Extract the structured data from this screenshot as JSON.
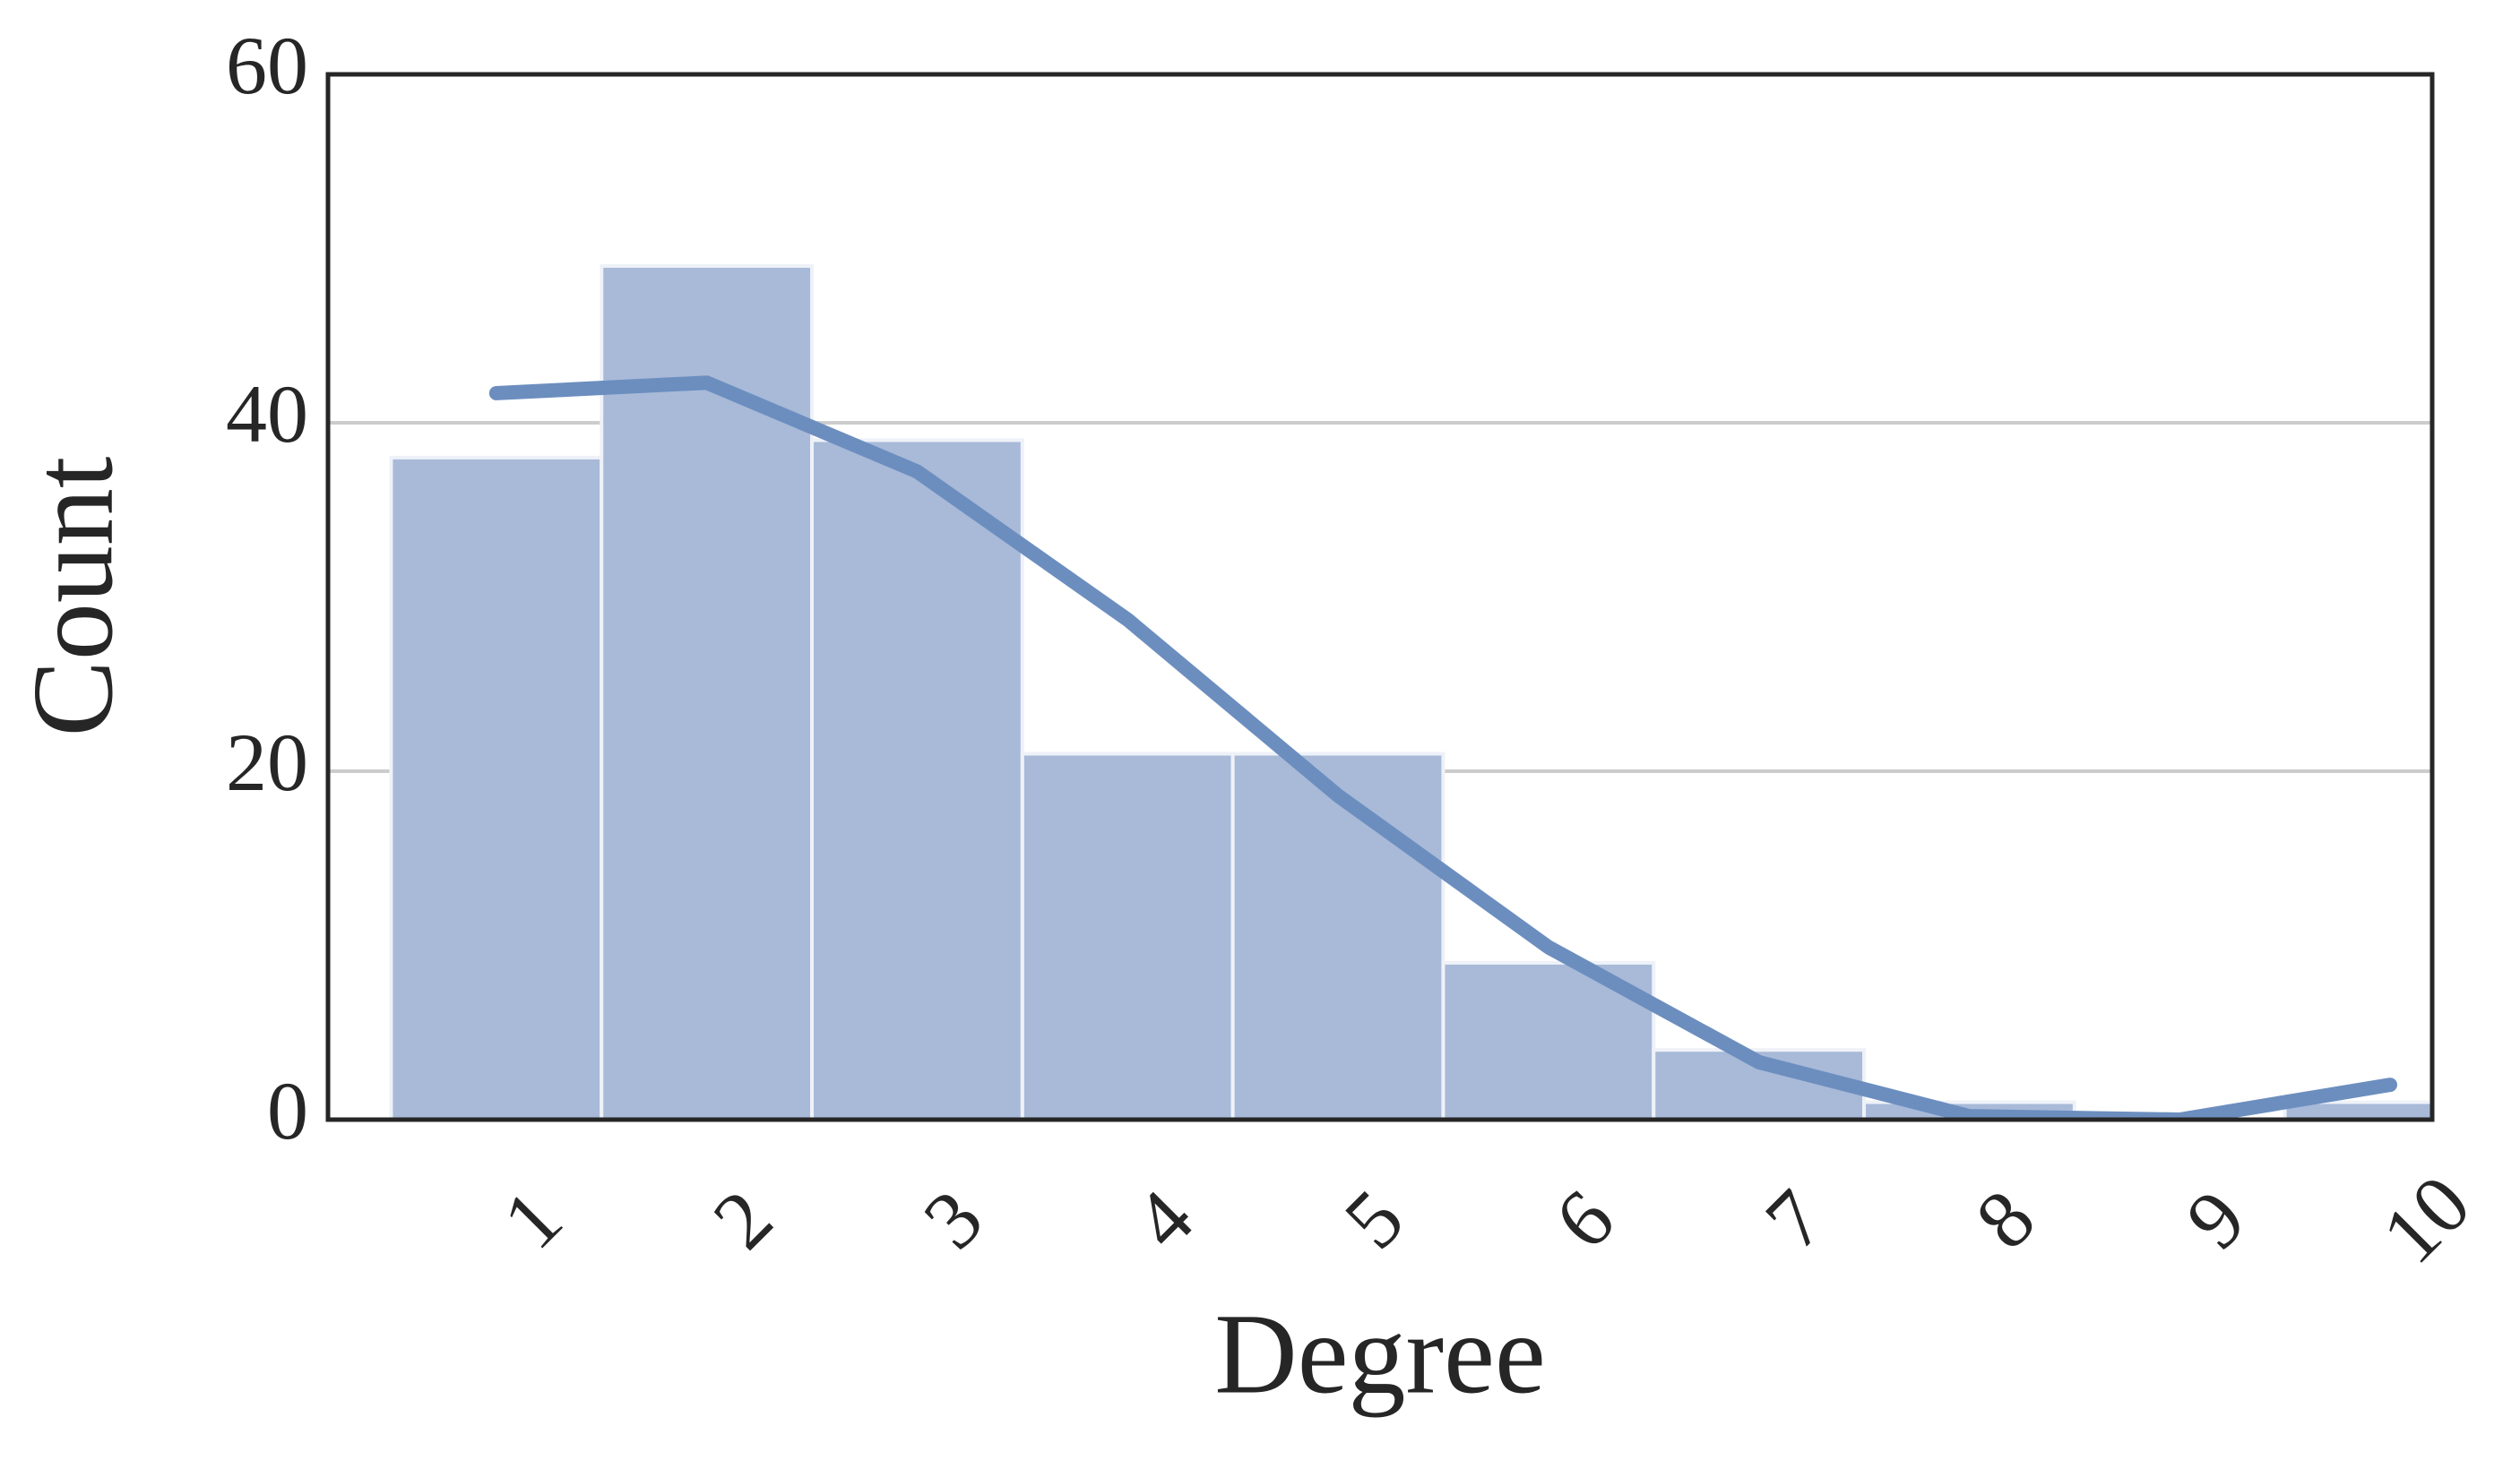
{
  "chart_data": {
    "type": "histogram",
    "x_label": "Degree",
    "y_label": "Count",
    "bins": [
      0.3,
      1.3,
      2.3,
      3.3,
      4.3,
      5.3,
      6.3,
      7.3,
      8.3,
      9.3,
      10.3
    ],
    "counts": [
      38,
      49,
      39,
      21,
      21,
      9,
      4,
      1,
      0,
      1
    ],
    "color": "#a8bad8",
    "kde": {
      "type": "line",
      "color": "#6c8ebf",
      "x": [
        0.8,
        1.8,
        2.8,
        3.8,
        4.8,
        5.8,
        6.8,
        7.8,
        8.8,
        9.8
      ],
      "values": [
        41.7,
        42.3,
        37.2,
        28.7,
        18.6,
        9.9,
        3.3,
        0.2,
        0,
        2
      ]
    },
    "xlim": [
      0,
      10
    ],
    "xticks": [
      1,
      2,
      3,
      4,
      5,
      6,
      7,
      8,
      9,
      10
    ],
    "ylim": [
      0,
      60
    ],
    "yticks": [
      0,
      20,
      40,
      60
    ],
    "grid": true
  }
}
